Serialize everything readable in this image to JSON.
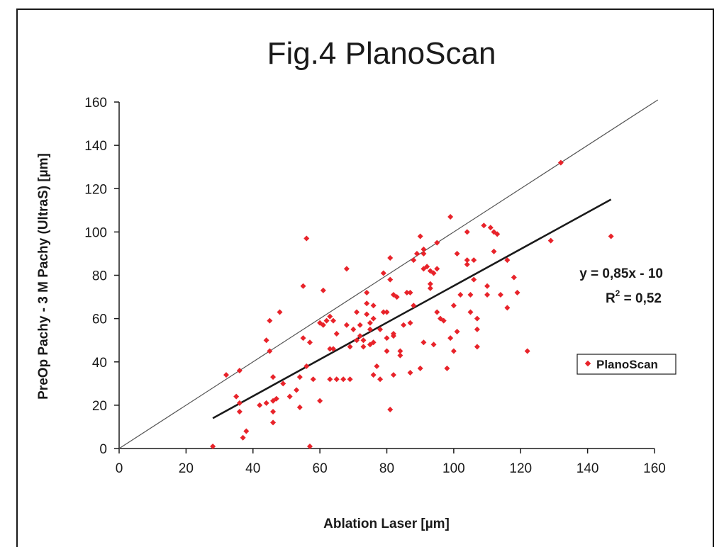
{
  "chart_data": {
    "type": "scatter",
    "title": "Fig.4 PlanoScan",
    "xlabel": "Ablation Laser [µm]",
    "ylabel": "PreOp Pachy - 3 M Pachy (UltraS) [µm]",
    "xlim": [
      0,
      160
    ],
    "ylim": [
      0,
      160
    ],
    "xticks": [
      "0",
      "20",
      "40",
      "60",
      "80",
      "100",
      "120",
      "140",
      "160"
    ],
    "yticks": [
      "0",
      "20",
      "40",
      "60",
      "80",
      "100",
      "120",
      "140",
      "160"
    ],
    "grid": false,
    "legend_position": "right",
    "series": [
      {
        "name": "PlanoScan",
        "color": "#e8232a",
        "marker": "diamond",
        "points": [
          [
            28,
            1
          ],
          [
            32,
            34
          ],
          [
            35,
            24
          ],
          [
            36,
            36
          ],
          [
            36,
            17
          ],
          [
            36,
            21
          ],
          [
            37,
            5
          ],
          [
            38,
            8
          ],
          [
            42,
            20
          ],
          [
            44,
            21
          ],
          [
            44,
            50
          ],
          [
            45,
            59
          ],
          [
            45,
            45
          ],
          [
            46,
            33
          ],
          [
            46,
            22
          ],
          [
            46,
            17
          ],
          [
            46,
            12
          ],
          [
            47,
            23
          ],
          [
            48,
            63
          ],
          [
            49,
            30
          ],
          [
            51,
            24
          ],
          [
            53,
            27
          ],
          [
            54,
            19
          ],
          [
            54,
            33
          ],
          [
            55,
            75
          ],
          [
            55,
            51
          ],
          [
            56,
            97
          ],
          [
            56,
            38
          ],
          [
            57,
            1
          ],
          [
            57,
            49
          ],
          [
            58,
            32
          ],
          [
            60,
            22
          ],
          [
            60,
            58
          ],
          [
            61,
            57
          ],
          [
            61,
            73
          ],
          [
            62,
            59
          ],
          [
            63,
            61
          ],
          [
            63,
            46
          ],
          [
            63,
            32
          ],
          [
            64,
            46
          ],
          [
            64,
            59
          ],
          [
            65,
            53
          ],
          [
            65,
            32
          ],
          [
            67,
            32
          ],
          [
            68,
            83
          ],
          [
            68,
            57
          ],
          [
            69,
            47
          ],
          [
            69,
            32
          ],
          [
            70,
            55
          ],
          [
            71,
            63
          ],
          [
            71,
            50
          ],
          [
            72,
            52
          ],
          [
            72,
            57
          ],
          [
            73,
            50
          ],
          [
            73,
            47
          ],
          [
            74,
            72
          ],
          [
            74,
            62
          ],
          [
            74,
            67
          ],
          [
            75,
            55
          ],
          [
            75,
            58
          ],
          [
            75,
            48
          ],
          [
            76,
            60
          ],
          [
            76,
            66
          ],
          [
            76,
            49
          ],
          [
            76,
            34
          ],
          [
            77,
            38
          ],
          [
            78,
            55
          ],
          [
            78,
            32
          ],
          [
            79,
            81
          ],
          [
            79,
            63
          ],
          [
            80,
            63
          ],
          [
            80,
            51
          ],
          [
            80,
            45
          ],
          [
            81,
            88
          ],
          [
            81,
            78
          ],
          [
            81,
            18
          ],
          [
            82,
            53
          ],
          [
            82,
            52
          ],
          [
            82,
            71
          ],
          [
            82,
            34
          ],
          [
            83,
            70
          ],
          [
            84,
            45
          ],
          [
            84,
            43
          ],
          [
            85,
            57
          ],
          [
            86,
            72
          ],
          [
            87,
            72
          ],
          [
            87,
            58
          ],
          [
            87,
            35
          ],
          [
            88,
            66
          ],
          [
            88,
            87
          ],
          [
            89,
            90
          ],
          [
            90,
            98
          ],
          [
            90,
            37
          ],
          [
            91,
            83
          ],
          [
            91,
            90
          ],
          [
            91,
            92
          ],
          [
            91,
            49
          ],
          [
            92,
            84
          ],
          [
            93,
            76
          ],
          [
            93,
            74
          ],
          [
            93,
            82
          ],
          [
            94,
            81
          ],
          [
            94,
            48
          ],
          [
            95,
            83
          ],
          [
            95,
            95
          ],
          [
            95,
            63
          ],
          [
            96,
            60
          ],
          [
            97,
            59
          ],
          [
            98,
            37
          ],
          [
            99,
            107
          ],
          [
            99,
            51
          ],
          [
            100,
            66
          ],
          [
            100,
            45
          ],
          [
            101,
            90
          ],
          [
            101,
            54
          ],
          [
            102,
            71
          ],
          [
            104,
            100
          ],
          [
            104,
            87
          ],
          [
            104,
            85
          ],
          [
            105,
            71
          ],
          [
            105,
            63
          ],
          [
            106,
            87
          ],
          [
            106,
            78
          ],
          [
            107,
            60
          ],
          [
            107,
            47
          ],
          [
            107,
            55
          ],
          [
            109,
            103
          ],
          [
            110,
            75
          ],
          [
            110,
            71
          ],
          [
            111,
            102
          ],
          [
            112,
            100
          ],
          [
            112,
            91
          ],
          [
            113,
            99
          ],
          [
            114,
            71
          ],
          [
            116,
            87
          ],
          [
            116,
            65
          ],
          [
            118,
            79
          ],
          [
            119,
            72
          ],
          [
            122,
            45
          ],
          [
            129,
            96
          ],
          [
            132,
            132
          ],
          [
            147,
            98
          ]
        ]
      }
    ],
    "lines": [
      {
        "kind": "identity",
        "x": [
          0,
          161
        ],
        "y": [
          0,
          161
        ],
        "color": "#555555"
      },
      {
        "kind": "regression",
        "x": [
          28,
          147
        ],
        "y": [
          14,
          115
        ],
        "color": "#1a1a1a"
      }
    ],
    "annotations": {
      "equation": "y = 0,85x - 10",
      "r2_prefix": "R",
      "r2_exp": "2",
      "r2_value": " = 0,52"
    }
  }
}
